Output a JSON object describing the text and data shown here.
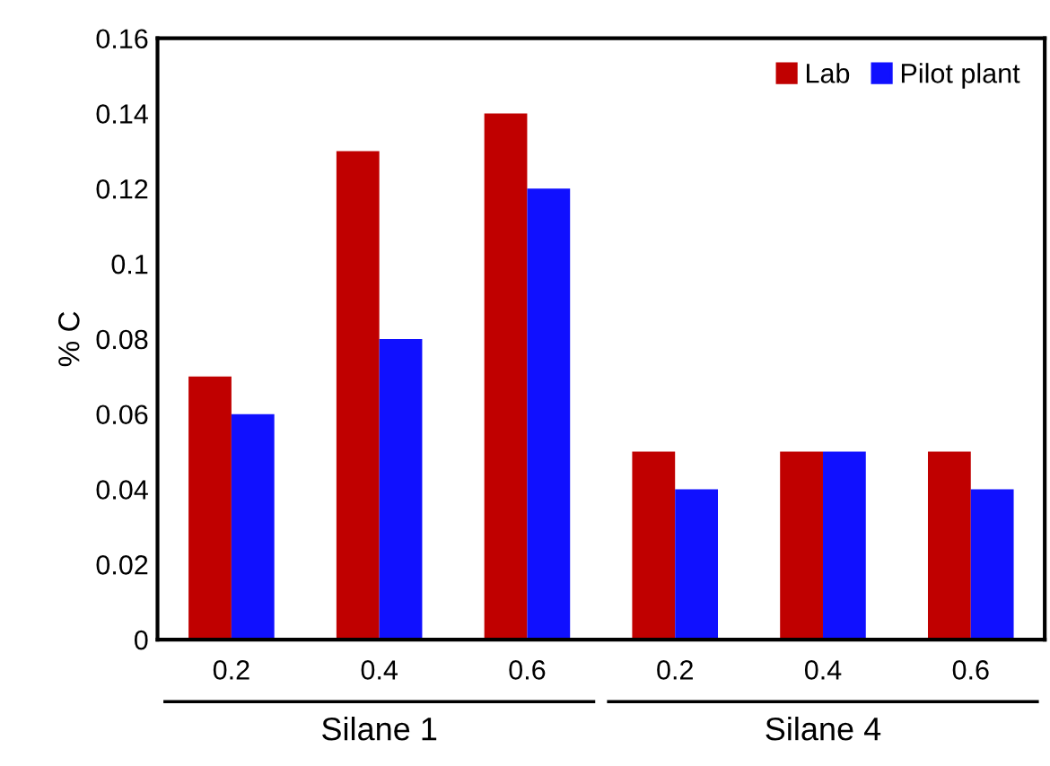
{
  "chart_data": {
    "type": "bar",
    "ylabel": "% C",
    "categories": [
      "0.2",
      "0.4",
      "0.6",
      "0.2",
      "0.4",
      "0.6"
    ],
    "series": [
      {
        "name": "Lab",
        "color": "#c00000",
        "values": [
          0.07,
          0.13,
          0.14,
          0.05,
          0.05,
          0.05
        ]
      },
      {
        "name": "Pilot plant",
        "color": "#1010ff",
        "values": [
          0.06,
          0.08,
          0.12,
          0.04,
          0.05,
          0.04
        ]
      }
    ],
    "ylim": [
      0,
      0.16
    ],
    "yticks": [
      0,
      0.02,
      0.04,
      0.06,
      0.08,
      0.1,
      0.12,
      0.14,
      0.16
    ],
    "legend": "top right",
    "annotations": [
      "Silane 1",
      "Silane 4"
    ]
  }
}
